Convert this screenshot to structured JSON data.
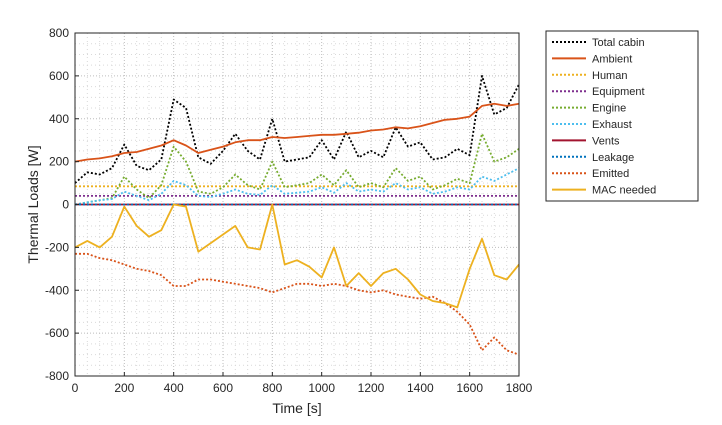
{
  "chart_data": {
    "type": "line",
    "title": "",
    "xlabel": "Time [s]",
    "ylabel": "Thermal Loads [W]",
    "xlim": [
      0,
      1800
    ],
    "ylim": [
      -800,
      800
    ],
    "xticks": [
      0,
      200,
      400,
      600,
      800,
      1000,
      1200,
      1400,
      1600,
      1800
    ],
    "yticks": [
      -800,
      -600,
      -400,
      -200,
      0,
      200,
      400,
      600,
      800
    ],
    "grid": "major and minor, dotted",
    "legend_position": "outside-right",
    "x": [
      0,
      50,
      100,
      150,
      200,
      250,
      300,
      350,
      400,
      450,
      500,
      550,
      600,
      650,
      700,
      750,
      800,
      850,
      900,
      950,
      1000,
      1050,
      1100,
      1150,
      1200,
      1250,
      1300,
      1350,
      1400,
      1450,
      1500,
      1550,
      1600,
      1650,
      1700,
      1750,
      1800
    ],
    "series": [
      {
        "name": "Total cabin",
        "color": "#000000",
        "style": "dotted",
        "values": [
          100,
          150,
          140,
          170,
          280,
          180,
          160,
          210,
          490,
          450,
          220,
          190,
          250,
          330,
          250,
          210,
          400,
          200,
          210,
          220,
          300,
          210,
          340,
          220,
          250,
          220,
          360,
          270,
          290,
          210,
          220,
          260,
          230,
          600,
          420,
          450,
          560
        ]
      },
      {
        "name": "Ambient",
        "color": "#d95319",
        "style": "solid",
        "values": [
          200,
          210,
          215,
          225,
          240,
          245,
          260,
          275,
          300,
          275,
          240,
          255,
          270,
          290,
          300,
          300,
          315,
          310,
          315,
          320,
          325,
          325,
          330,
          335,
          345,
          350,
          360,
          355,
          365,
          380,
          395,
          400,
          410,
          460,
          470,
          460,
          470
        ]
      },
      {
        "name": "Human",
        "color": "#edb120",
        "style": "dotted",
        "values": [
          85,
          85,
          85,
          85,
          85,
          85,
          85,
          85,
          85,
          85,
          85,
          85,
          85,
          85,
          85,
          85,
          85,
          85,
          85,
          85,
          85,
          85,
          85,
          85,
          85,
          85,
          85,
          85,
          85,
          85,
          85,
          85,
          85,
          85,
          85,
          85,
          85
        ]
      },
      {
        "name": "Equipment",
        "color": "#7e2f8e",
        "style": "dotted",
        "values": [
          40,
          40,
          40,
          40,
          40,
          40,
          40,
          40,
          40,
          40,
          40,
          40,
          40,
          40,
          40,
          40,
          40,
          40,
          40,
          40,
          40,
          40,
          40,
          40,
          40,
          40,
          40,
          40,
          40,
          40,
          40,
          40,
          40,
          40,
          40,
          40,
          40
        ]
      },
      {
        "name": "Engine",
        "color": "#77ac30",
        "style": "dotted",
        "values": [
          0,
          10,
          20,
          30,
          130,
          70,
          30,
          90,
          270,
          200,
          60,
          50,
          80,
          140,
          90,
          70,
          200,
          80,
          90,
          100,
          140,
          90,
          160,
          80,
          100,
          80,
          170,
          110,
          130,
          70,
          90,
          120,
          100,
          330,
          200,
          220,
          260
        ]
      },
      {
        "name": "Exhaust",
        "color": "#4dbeee",
        "style": "dotted",
        "values": [
          0,
          10,
          20,
          25,
          60,
          40,
          20,
          50,
          110,
          90,
          40,
          35,
          50,
          70,
          50,
          45,
          90,
          50,
          55,
          60,
          80,
          55,
          100,
          60,
          70,
          60,
          100,
          70,
          80,
          50,
          60,
          80,
          70,
          130,
          110,
          140,
          170
        ]
      },
      {
        "name": "Vents",
        "color": "#a2142f",
        "style": "solid",
        "values": [
          0,
          0,
          0,
          0,
          0,
          0,
          0,
          0,
          0,
          0,
          0,
          0,
          0,
          0,
          0,
          0,
          0,
          0,
          0,
          0,
          0,
          0,
          0,
          0,
          0,
          0,
          0,
          0,
          0,
          0,
          0,
          0,
          0,
          0,
          0,
          0,
          0
        ]
      },
      {
        "name": "Leakage",
        "color": "#0072bd",
        "style": "dotted",
        "values": [
          0,
          0,
          0,
          0,
          0,
          0,
          0,
          0,
          0,
          0,
          0,
          0,
          0,
          0,
          0,
          0,
          0,
          0,
          0,
          0,
          0,
          0,
          0,
          0,
          0,
          0,
          0,
          0,
          0,
          0,
          0,
          0,
          0,
          0,
          0,
          0,
          0
        ]
      },
      {
        "name": "Emitted",
        "color": "#d95319",
        "style": "dotted",
        "values": [
          -230,
          -230,
          -250,
          -260,
          -280,
          -300,
          -310,
          -330,
          -380,
          -380,
          -350,
          -350,
          -360,
          -370,
          -380,
          -390,
          -410,
          -390,
          -370,
          -370,
          -380,
          -370,
          -380,
          -400,
          -410,
          -400,
          -420,
          -430,
          -440,
          -430,
          -460,
          -500,
          -560,
          -680,
          -620,
          -680,
          -700
        ]
      },
      {
        "name": "MAC needed",
        "color": "#edb120",
        "style": "solid",
        "values": [
          -200,
          -170,
          -200,
          -150,
          -10,
          -100,
          -150,
          -120,
          0,
          -10,
          -220,
          -180,
          -140,
          -100,
          -200,
          -210,
          0,
          -280,
          -260,
          -290,
          -340,
          -200,
          -380,
          -320,
          -380,
          -320,
          -300,
          -350,
          -420,
          -450,
          -460,
          -480,
          -300,
          -160,
          -330,
          -350,
          -280
        ]
      }
    ]
  }
}
